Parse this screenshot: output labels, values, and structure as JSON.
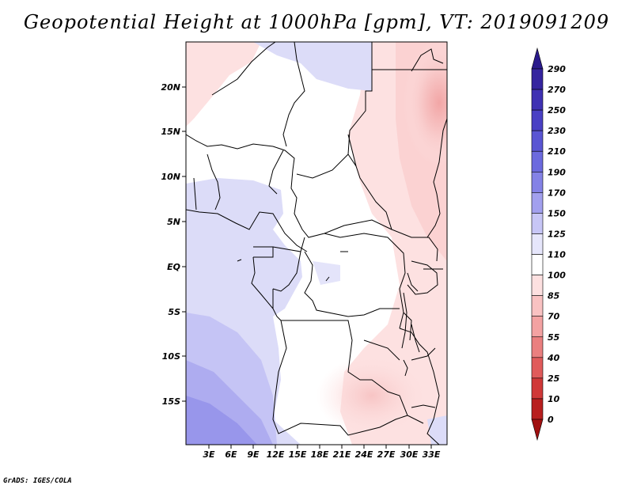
{
  "title": "Geopotential Height at 1000hPa [gpm], VT: 2019091209",
  "credit": "GrADS: IGES/COLA",
  "map": {
    "lat_labels": [
      "20N",
      "15N",
      "10N",
      "5N",
      "EQ",
      "5S",
      "10S",
      "15S"
    ],
    "lon_labels": [
      "3E",
      "6E",
      "9E",
      "12E",
      "15E",
      "18E",
      "21E",
      "24E",
      "27E",
      "30E",
      "33E"
    ]
  },
  "colorbar": {
    "levels": [
      "290",
      "270",
      "250",
      "230",
      "210",
      "190",
      "170",
      "150",
      "125",
      "110",
      "100",
      "85",
      "70",
      "55",
      "40",
      "25",
      "10",
      "0"
    ],
    "colors": [
      "#2a1a8c",
      "#35249f",
      "#3f31b3",
      "#4a40c4",
      "#5a55d3",
      "#6c6ade",
      "#8482e6",
      "#a2a0ee",
      "#c7c6f6",
      "#e6e6fb",
      "#ffffff",
      "#fde0e0",
      "#f9c2c2",
      "#f3a2a2",
      "#ea7f7f",
      "#e05b5b",
      "#d03838",
      "#b81f1f",
      "#a01010"
    ]
  }
}
